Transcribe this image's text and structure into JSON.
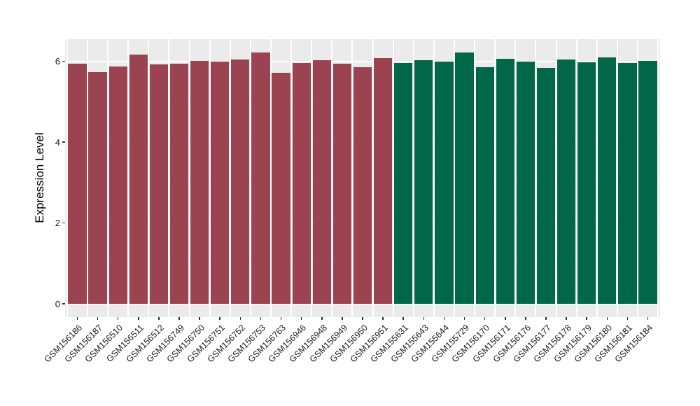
{
  "figure": {
    "background_color": "#FFFFFF",
    "panel_background_color": "#EBEBEB",
    "grid_color": "#FFFFFF",
    "tick_color": "#333333",
    "axis_text_color": "#1a1a1a",
    "axis_title_color": "#000000",
    "group_colors": {
      "group_1": "#9C4352",
      "group_2": "#006849"
    }
  },
  "chart_data": {
    "type": "bar",
    "title": "",
    "xlabel": "",
    "ylabel": "Expression Level",
    "ylim": [
      0,
      6.55
    ],
    "yticks": [
      0,
      2,
      4,
      6
    ],
    "ytick_labels": [
      "0",
      "2",
      "4",
      "6"
    ],
    "grid": true,
    "legend_position": "none",
    "categories": [
      "GSM156186",
      "GSM156187",
      "GSM156510",
      "GSM156511",
      "GSM156512",
      "GSM156749",
      "GSM156750",
      "GSM156751",
      "GSM156752",
      "GSM156753",
      "GSM156763",
      "GSM156946",
      "GSM156948",
      "GSM156949",
      "GSM156950",
      "GSM156951",
      "GSM155631",
      "GSM155643",
      "GSM155644",
      "GSM155729",
      "GSM156170",
      "GSM156171",
      "GSM156176",
      "GSM156177",
      "GSM156178",
      "GSM156179",
      "GSM156180",
      "GSM156181",
      "GSM156184"
    ],
    "values": [
      5.95,
      5.74,
      5.88,
      6.17,
      5.93,
      5.95,
      6.02,
      5.99,
      6.05,
      6.23,
      5.72,
      5.96,
      6.03,
      5.95,
      5.86,
      6.08,
      5.96,
      6.03,
      6.0,
      6.23,
      5.85,
      6.06,
      5.99,
      5.84,
      6.05,
      5.98,
      6.1,
      5.96,
      6.01
    ],
    "colors": [
      "#9C4352",
      "#9C4352",
      "#9C4352",
      "#9C4352",
      "#9C4352",
      "#9C4352",
      "#9C4352",
      "#9C4352",
      "#9C4352",
      "#9C4352",
      "#9C4352",
      "#9C4352",
      "#9C4352",
      "#9C4352",
      "#9C4352",
      "#9C4352",
      "#006849",
      "#006849",
      "#006849",
      "#006849",
      "#006849",
      "#006849",
      "#006849",
      "#006849",
      "#006849",
      "#006849",
      "#006849",
      "#006849",
      "#006849"
    ]
  }
}
